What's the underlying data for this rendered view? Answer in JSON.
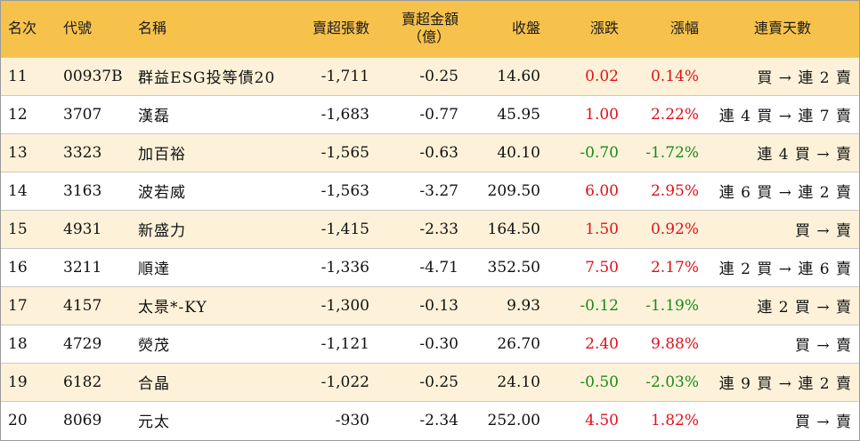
{
  "header": {
    "rank": "名次",
    "code": "代號",
    "name": "名稱",
    "sell_lots": "賣超張數",
    "sell_amount_line1": "賣超金額",
    "sell_amount_line2": "（億）",
    "close": "收盤",
    "change": "漲跌",
    "change_pct": "漲幅",
    "streak": "連賣天數"
  },
  "colors": {
    "header_bg": "#f7c24c",
    "odd_row_bg": "#fdf2d9",
    "up": "#e0101a",
    "down": "#1a8a1a"
  },
  "rows": [
    {
      "rank": "11",
      "code": "00937B",
      "name": "群益ESG投等債20",
      "sell_lots": "-1,711",
      "sell_amount": "-0.25",
      "close": "14.60",
      "change": "0.02",
      "change_pct": "0.14%",
      "dir": "up",
      "streak": "買 → 連 2 賣"
    },
    {
      "rank": "12",
      "code": "3707",
      "name": "漢磊",
      "sell_lots": "-1,683",
      "sell_amount": "-0.77",
      "close": "45.95",
      "change": "1.00",
      "change_pct": "2.22%",
      "dir": "up",
      "streak": "連 4 買 → 連 7 賣"
    },
    {
      "rank": "13",
      "code": "3323",
      "name": "加百裕",
      "sell_lots": "-1,565",
      "sell_amount": "-0.63",
      "close": "40.10",
      "change": "-0.70",
      "change_pct": "-1.72%",
      "dir": "down",
      "streak": "連 4 買 → 賣"
    },
    {
      "rank": "14",
      "code": "3163",
      "name": "波若威",
      "sell_lots": "-1,563",
      "sell_amount": "-3.27",
      "close": "209.50",
      "change": "6.00",
      "change_pct": "2.95%",
      "dir": "up",
      "streak": "連 6 買 → 連 2 賣"
    },
    {
      "rank": "15",
      "code": "4931",
      "name": "新盛力",
      "sell_lots": "-1,415",
      "sell_amount": "-2.33",
      "close": "164.50",
      "change": "1.50",
      "change_pct": "0.92%",
      "dir": "up",
      "streak": "買 → 賣"
    },
    {
      "rank": "16",
      "code": "3211",
      "name": "順達",
      "sell_lots": "-1,336",
      "sell_amount": "-4.71",
      "close": "352.50",
      "change": "7.50",
      "change_pct": "2.17%",
      "dir": "up",
      "streak": "連 2 買 → 連 6 賣"
    },
    {
      "rank": "17",
      "code": "4157",
      "name": "太景*-KY",
      "sell_lots": "-1,300",
      "sell_amount": "-0.13",
      "close": "9.93",
      "change": "-0.12",
      "change_pct": "-1.19%",
      "dir": "down",
      "streak": "連 2 買 → 賣"
    },
    {
      "rank": "18",
      "code": "4729",
      "name": "熒茂",
      "sell_lots": "-1,121",
      "sell_amount": "-0.30",
      "close": "26.70",
      "change": "2.40",
      "change_pct": "9.88%",
      "dir": "up",
      "streak": "買 → 賣"
    },
    {
      "rank": "19",
      "code": "6182",
      "name": "合晶",
      "sell_lots": "-1,022",
      "sell_amount": "-0.25",
      "close": "24.10",
      "change": "-0.50",
      "change_pct": "-2.03%",
      "dir": "down",
      "streak": "連 9 買 → 連 2 賣"
    },
    {
      "rank": "20",
      "code": "8069",
      "name": "元太",
      "sell_lots": "-930",
      "sell_amount": "-2.34",
      "close": "252.00",
      "change": "4.50",
      "change_pct": "1.82%",
      "dir": "up",
      "streak": "買 → 賣"
    }
  ]
}
